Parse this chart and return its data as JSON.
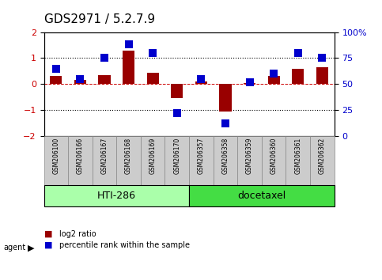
{
  "title": "GDS2971 / 5.2.7.9",
  "samples": [
    "GSM206100",
    "GSM206166",
    "GSM206167",
    "GSM206168",
    "GSM206169",
    "GSM206170",
    "GSM206357",
    "GSM206358",
    "GSM206359",
    "GSM206360",
    "GSM206361",
    "GSM206362"
  ],
  "log2_ratio": [
    0.3,
    0.15,
    0.35,
    1.3,
    0.42,
    -0.55,
    0.1,
    -1.05,
    0.05,
    0.32,
    0.6,
    0.65
  ],
  "percentile": [
    65,
    55,
    75,
    88,
    80,
    22,
    55,
    12,
    52,
    60,
    80,
    75
  ],
  "groups": [
    {
      "label": "HTI-286",
      "start": 0,
      "end": 6,
      "color": "#aaffaa"
    },
    {
      "label": "docetaxel",
      "start": 6,
      "end": 12,
      "color": "#44dd44"
    }
  ],
  "ylim_left": [
    -2,
    2
  ],
  "ylim_right": [
    0,
    100
  ],
  "yticks_left": [
    -2,
    -1,
    0,
    1,
    2
  ],
  "yticks_right": [
    0,
    25,
    50,
    75,
    100
  ],
  "ytick_labels_right": [
    "0",
    "25",
    "50",
    "75",
    "100%"
  ],
  "bar_color": "#990000",
  "dot_color": "#0000CC",
  "bar_width": 0.5,
  "dot_size": 50,
  "legend_bar": "log2 ratio",
  "legend_dot": "percentile rank within the sample",
  "background_color": "#ffffff",
  "plot_bg": "#ffffff",
  "sample_box_bg": "#cccccc",
  "title_fontsize": 11,
  "tick_fontsize": 8,
  "label_fontsize": 7,
  "group_fontsize": 9
}
